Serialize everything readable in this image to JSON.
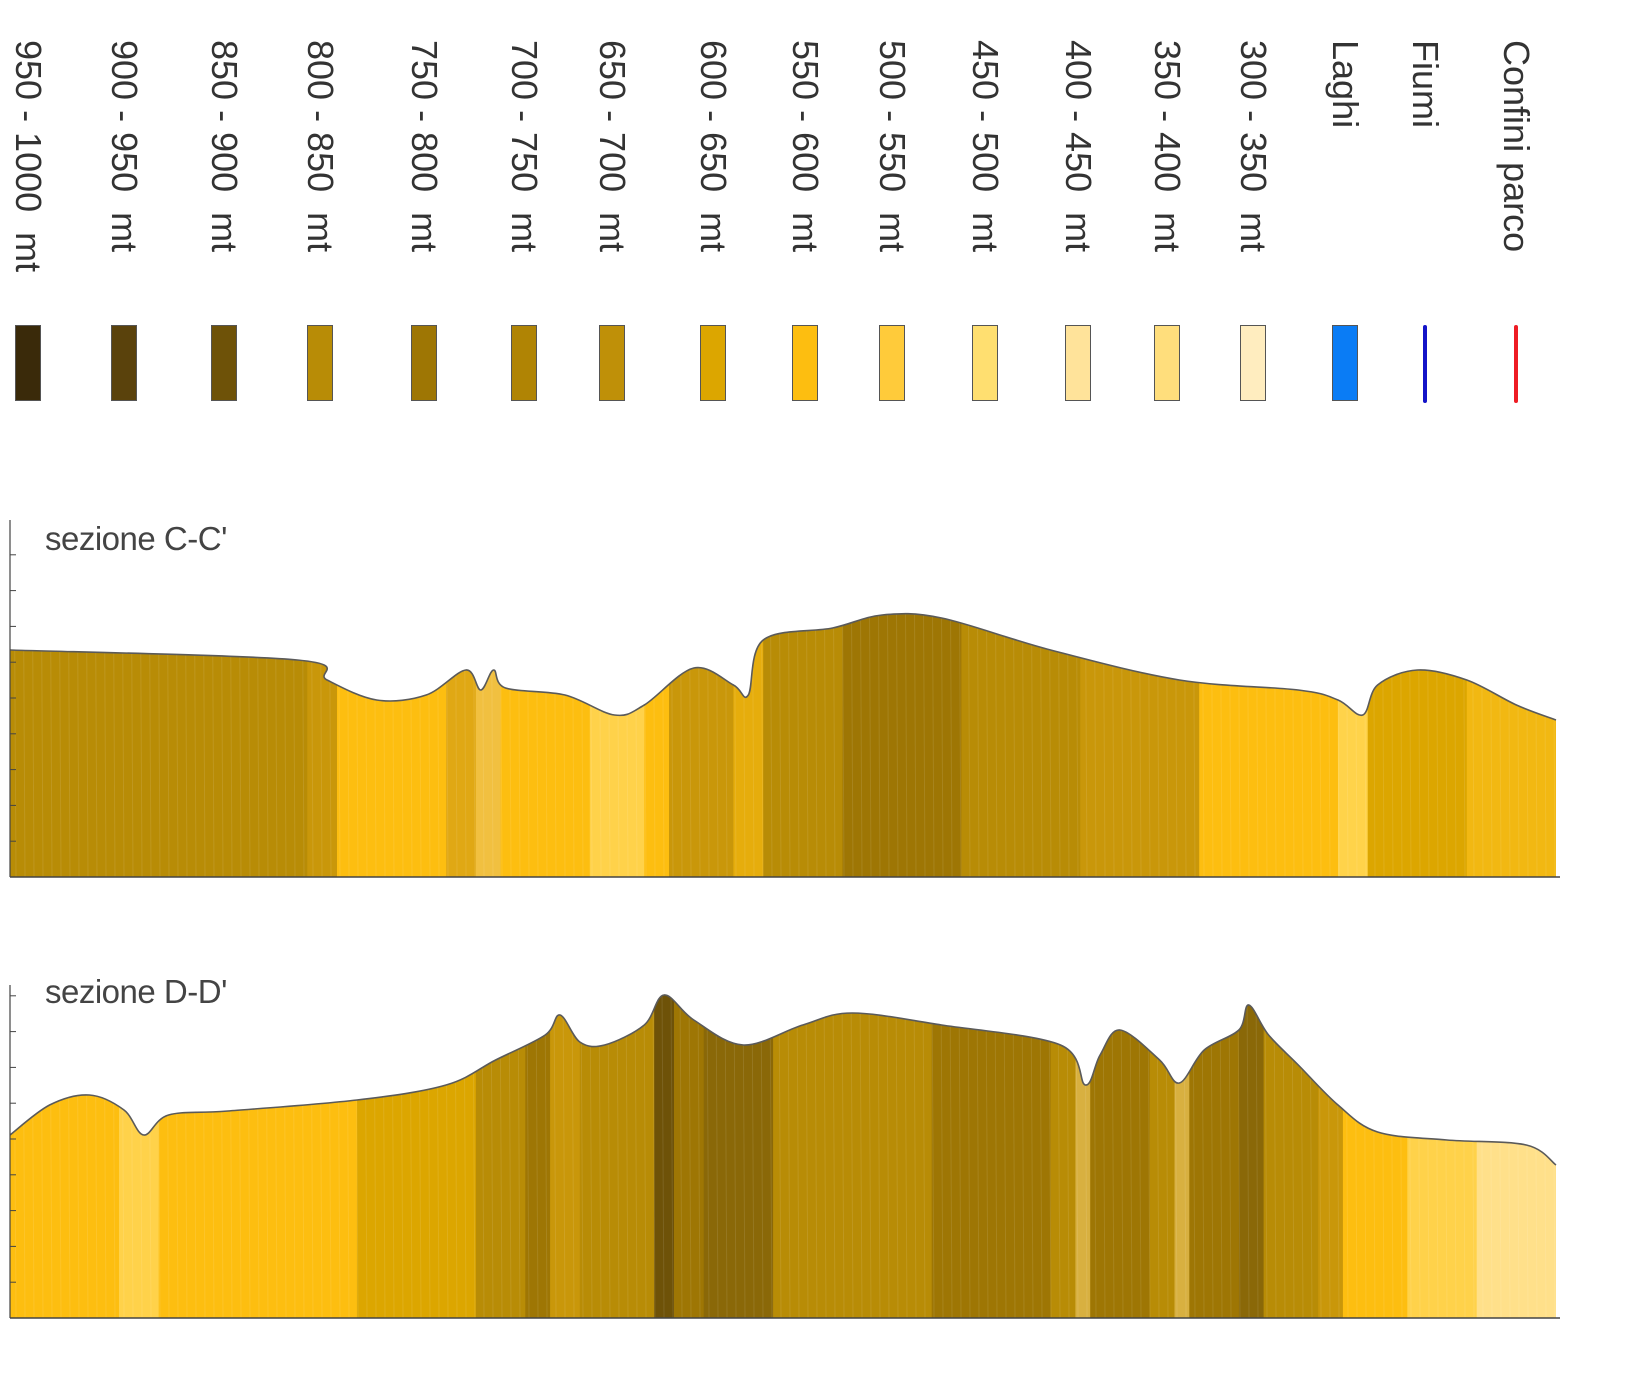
{
  "legend": {
    "items": [
      {
        "label": "950 - 1000  mt",
        "kind": "swatch",
        "color": "#3a2a0a"
      },
      {
        "label": "900 - 950  mt",
        "kind": "swatch",
        "color": "#5a420c"
      },
      {
        "label": "850 - 900  mt",
        "kind": "swatch",
        "color": "#6e5208"
      },
      {
        "label": "800 - 850  mt",
        "kind": "swatch",
        "color": "#b88c06"
      },
      {
        "label": "750 - 800  mt",
        "kind": "swatch",
        "color": "#9e7604"
      },
      {
        "label": "700 - 750  mt",
        "kind": "swatch",
        "color": "#b08404"
      },
      {
        "label": "650 - 700  mt",
        "kind": "swatch",
        "color": "#bf9008"
      },
      {
        "label": "600 - 650  mt",
        "kind": "swatch",
        "color": "#dca600"
      },
      {
        "label": "550 - 600  mt",
        "kind": "swatch",
        "color": "#fdbe10"
      },
      {
        "label": "500 - 550  mt",
        "kind": "swatch",
        "color": "#ffcb3a"
      },
      {
        "label": "450 - 500  mt",
        "kind": "swatch",
        "color": "#ffdf70"
      },
      {
        "label": "400 - 450  mt",
        "kind": "swatch",
        "color": "#ffe39a"
      },
      {
        "label": "350 - 400  mt",
        "kind": "swatch",
        "color": "#ffde7c"
      },
      {
        "label": "300 - 350  mt",
        "kind": "swatch",
        "color": "#ffedbf"
      },
      {
        "label": "Laghi",
        "kind": "swatch",
        "color": "#0a7cf5"
      },
      {
        "label": "Fiumi",
        "kind": "line",
        "color": "#1414c8"
      },
      {
        "label": "Confini parco",
        "kind": "line",
        "color": "#ee1c24"
      }
    ]
  },
  "sections": [
    {
      "title": "sezione C-C'",
      "profile": [
        [
          0,
          130
        ],
        [
          290,
          140
        ],
        [
          320,
          160
        ],
        [
          370,
          180
        ],
        [
          420,
          175
        ],
        [
          460,
          150
        ],
        [
          475,
          170
        ],
        [
          488,
          150
        ],
        [
          500,
          168
        ],
        [
          560,
          175
        ],
        [
          610,
          195
        ],
        [
          640,
          185
        ],
        [
          690,
          148
        ],
        [
          730,
          165
        ],
        [
          745,
          175
        ],
        [
          760,
          120
        ],
        [
          830,
          108
        ],
        [
          880,
          95
        ],
        [
          940,
          98
        ],
        [
          1050,
          130
        ],
        [
          1180,
          160
        ],
        [
          1300,
          170
        ],
        [
          1340,
          180
        ],
        [
          1365,
          195
        ],
        [
          1380,
          165
        ],
        [
          1420,
          150
        ],
        [
          1470,
          160
        ],
        [
          1520,
          185
        ],
        [
          1560,
          200
        ]
      ],
      "bands": [
        [
          0,
          "#b88c06"
        ],
        [
          300,
          "#c9970a"
        ],
        [
          330,
          "#fdbe10"
        ],
        [
          440,
          "#e0a814"
        ],
        [
          470,
          "#f1c040"
        ],
        [
          495,
          "#fdbe10"
        ],
        [
          585,
          "#ffd24a"
        ],
        [
          640,
          "#fdbe10"
        ],
        [
          665,
          "#c9970a"
        ],
        [
          730,
          "#e6ad0c"
        ],
        [
          760,
          "#b88c06"
        ],
        [
          840,
          "#9e7604"
        ],
        [
          960,
          "#b88c06"
        ],
        [
          1080,
          "#c9970a"
        ],
        [
          1200,
          "#fdbe10"
        ],
        [
          1340,
          "#ffd34a"
        ],
        [
          1370,
          "#dca600"
        ],
        [
          1470,
          "#f2b812"
        ]
      ]
    },
    {
      "title": "sezione D-D'",
      "profile": [
        [
          0,
          150
        ],
        [
          40,
          120
        ],
        [
          80,
          110
        ],
        [
          115,
          125
        ],
        [
          135,
          150
        ],
        [
          160,
          130
        ],
        [
          220,
          126
        ],
        [
          350,
          115
        ],
        [
          440,
          100
        ],
        [
          490,
          75
        ],
        [
          540,
          50
        ],
        [
          555,
          30
        ],
        [
          575,
          57
        ],
        [
          600,
          60
        ],
        [
          640,
          40
        ],
        [
          660,
          10
        ],
        [
          690,
          35
        ],
        [
          740,
          60
        ],
        [
          800,
          40
        ],
        [
          850,
          28
        ],
        [
          940,
          40
        ],
        [
          1060,
          60
        ],
        [
          1085,
          100
        ],
        [
          1100,
          70
        ],
        [
          1120,
          45
        ],
        [
          1160,
          75
        ],
        [
          1180,
          98
        ],
        [
          1205,
          65
        ],
        [
          1240,
          45
        ],
        [
          1250,
          20
        ],
        [
          1270,
          50
        ],
        [
          1300,
          80
        ],
        [
          1340,
          120
        ],
        [
          1380,
          147
        ],
        [
          1450,
          155
        ],
        [
          1530,
          160
        ],
        [
          1560,
          180
        ]
      ],
      "bands": [
        [
          0,
          "#fdbe10"
        ],
        [
          110,
          "#ffd24a"
        ],
        [
          150,
          "#fdbe10"
        ],
        [
          350,
          "#dca600"
        ],
        [
          470,
          "#b88c06"
        ],
        [
          520,
          "#9e7604"
        ],
        [
          545,
          "#c9970a"
        ],
        [
          575,
          "#b88c06"
        ],
        [
          650,
          "#6e5208"
        ],
        [
          670,
          "#9e7604"
        ],
        [
          700,
          "#8a6808"
        ],
        [
          770,
          "#b88c06"
        ],
        [
          930,
          "#9e7604"
        ],
        [
          1050,
          "#b88c06"
        ],
        [
          1075,
          "#d8b040"
        ],
        [
          1090,
          "#9e7604"
        ],
        [
          1150,
          "#b88c06"
        ],
        [
          1175,
          "#d8b040"
        ],
        [
          1190,
          "#9e7604"
        ],
        [
          1240,
          "#8a6808"
        ],
        [
          1265,
          "#b88c06"
        ],
        [
          1320,
          "#c9970a"
        ],
        [
          1345,
          "#fdbe10"
        ],
        [
          1410,
          "#ffd24a"
        ],
        [
          1480,
          "#ffe08a"
        ]
      ]
    }
  ]
}
